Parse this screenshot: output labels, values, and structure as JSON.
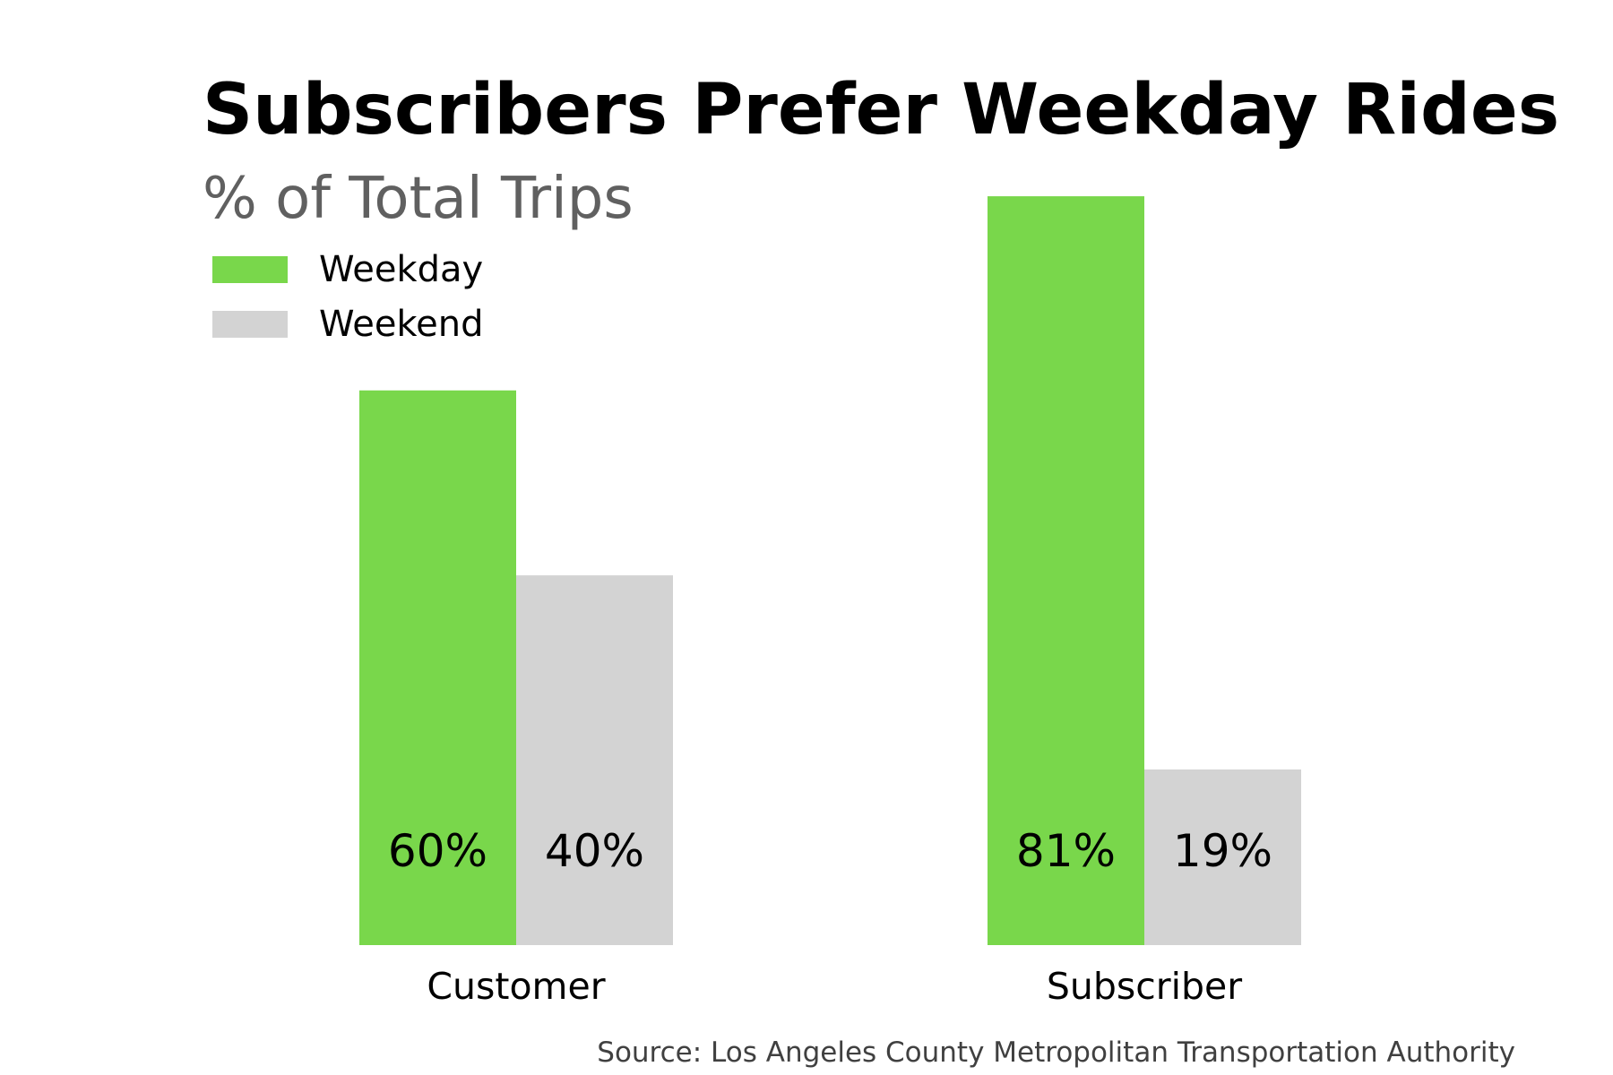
{
  "chart_data": {
    "type": "bar",
    "title": "Subscribers Prefer Weekday Rides",
    "subtitle": "% of Total Trips",
    "source": "Source: Los Angeles County Metropolitan Transportation Authority",
    "categories": [
      "Customer",
      "Subscriber"
    ],
    "series": [
      {
        "name": "Weekday",
        "color": "#79d74b",
        "values": [
          60,
          81
        ],
        "labels": [
          "60%",
          "81%"
        ]
      },
      {
        "name": "Weekend",
        "color": "#d3d3d3",
        "values": [
          40,
          19
        ],
        "labels": [
          "40%",
          "19%"
        ]
      }
    ],
    "ylim": [
      0,
      100
    ],
    "grid": false,
    "legend_position": "top-left",
    "data_label_position": "inside-bottom"
  }
}
